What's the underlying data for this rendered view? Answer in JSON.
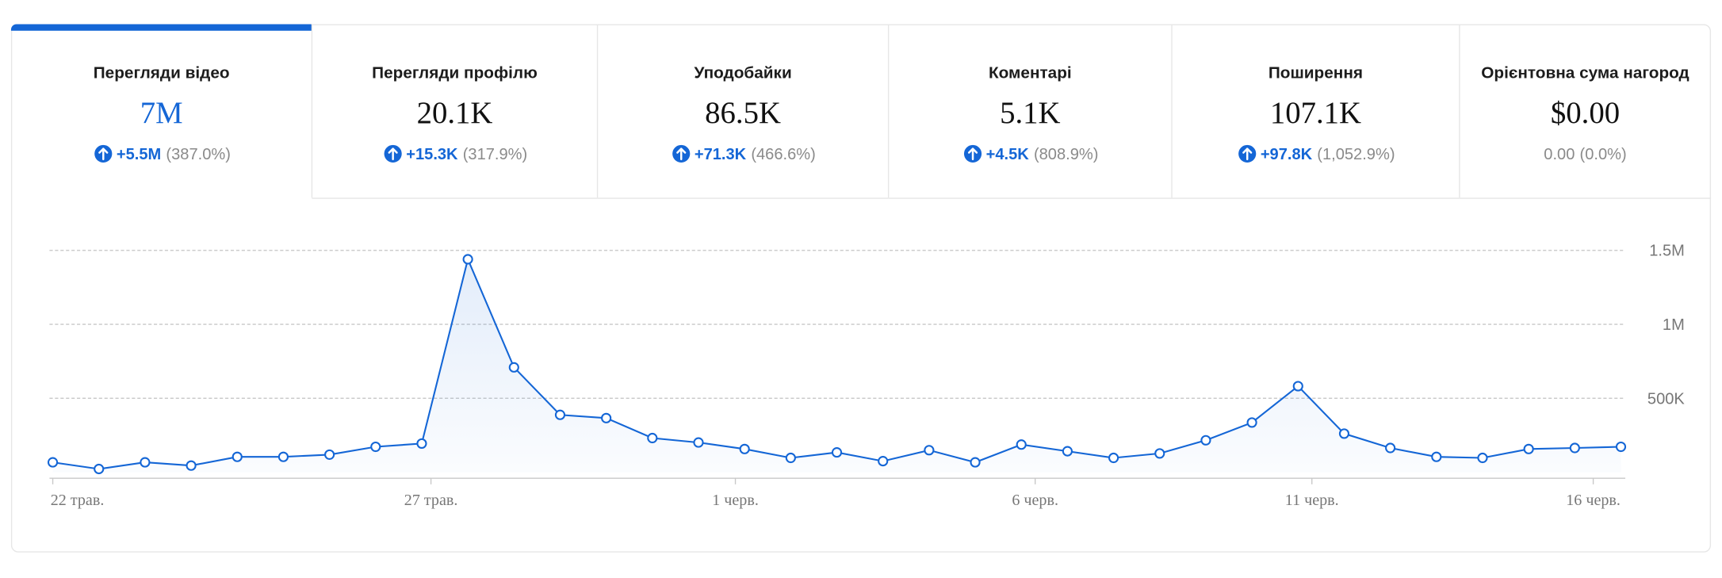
{
  "tabs": [
    {
      "label": "Перегляди відео",
      "value": "7M",
      "change": "+5.5M",
      "percent": "(387.0%)",
      "selected": true
    },
    {
      "label": "Перегляди профілю",
      "value": "20.1K",
      "change": "+15.3K",
      "percent": "(317.9%)"
    },
    {
      "label": "Уподобайки",
      "value": "86.5K",
      "change": "+71.3K",
      "percent": "(466.6%)"
    },
    {
      "label": "Коментарі",
      "value": "5.1K",
      "change": "+4.5K",
      "percent": "(808.9%)"
    },
    {
      "label": "Поширення",
      "value": "107.1K",
      "change": "+97.8K",
      "percent": "(1,052.9%)"
    },
    {
      "label": "Орієнтовна сума нагород",
      "value": "$0.00",
      "change": "0.00",
      "percent": "(0.0%)",
      "neutral": true
    }
  ],
  "chart_data": {
    "type": "line",
    "color": "#1466d6",
    "grid": true,
    "values": [
      67000,
      22000,
      67000,
      45000,
      104000,
      104000,
      119000,
      172000,
      194000,
      1440000,
      709000,
      388000,
      366000,
      231000,
      201000,
      157000,
      97000,
      134000,
      75000,
      149000,
      67000,
      187000,
      142000,
      97000,
      127000,
      216000,
      336000,
      582000,
      261000,
      164000,
      104000,
      97000,
      157000,
      164000,
      172000
    ],
    "xlim": [
      0,
      34
    ],
    "xticks": [
      {
        "value": 0,
        "label": "22 трав."
      },
      {
        "value": 8.2,
        "label": "27 трав."
      },
      {
        "value": 14.8,
        "label": "1 черв."
      },
      {
        "value": 21.3,
        "label": "6 черв."
      },
      {
        "value": 27.3,
        "label": "11 черв."
      },
      {
        "value": 33.4,
        "label": "16 черв."
      }
    ],
    "ylim": [
      0,
      1500000
    ],
    "yticks": [
      {
        "value": 500000,
        "label": "500K"
      },
      {
        "value": 1000000,
        "label": "1M"
      },
      {
        "value": 1500000,
        "label": "1.5M"
      }
    ]
  }
}
